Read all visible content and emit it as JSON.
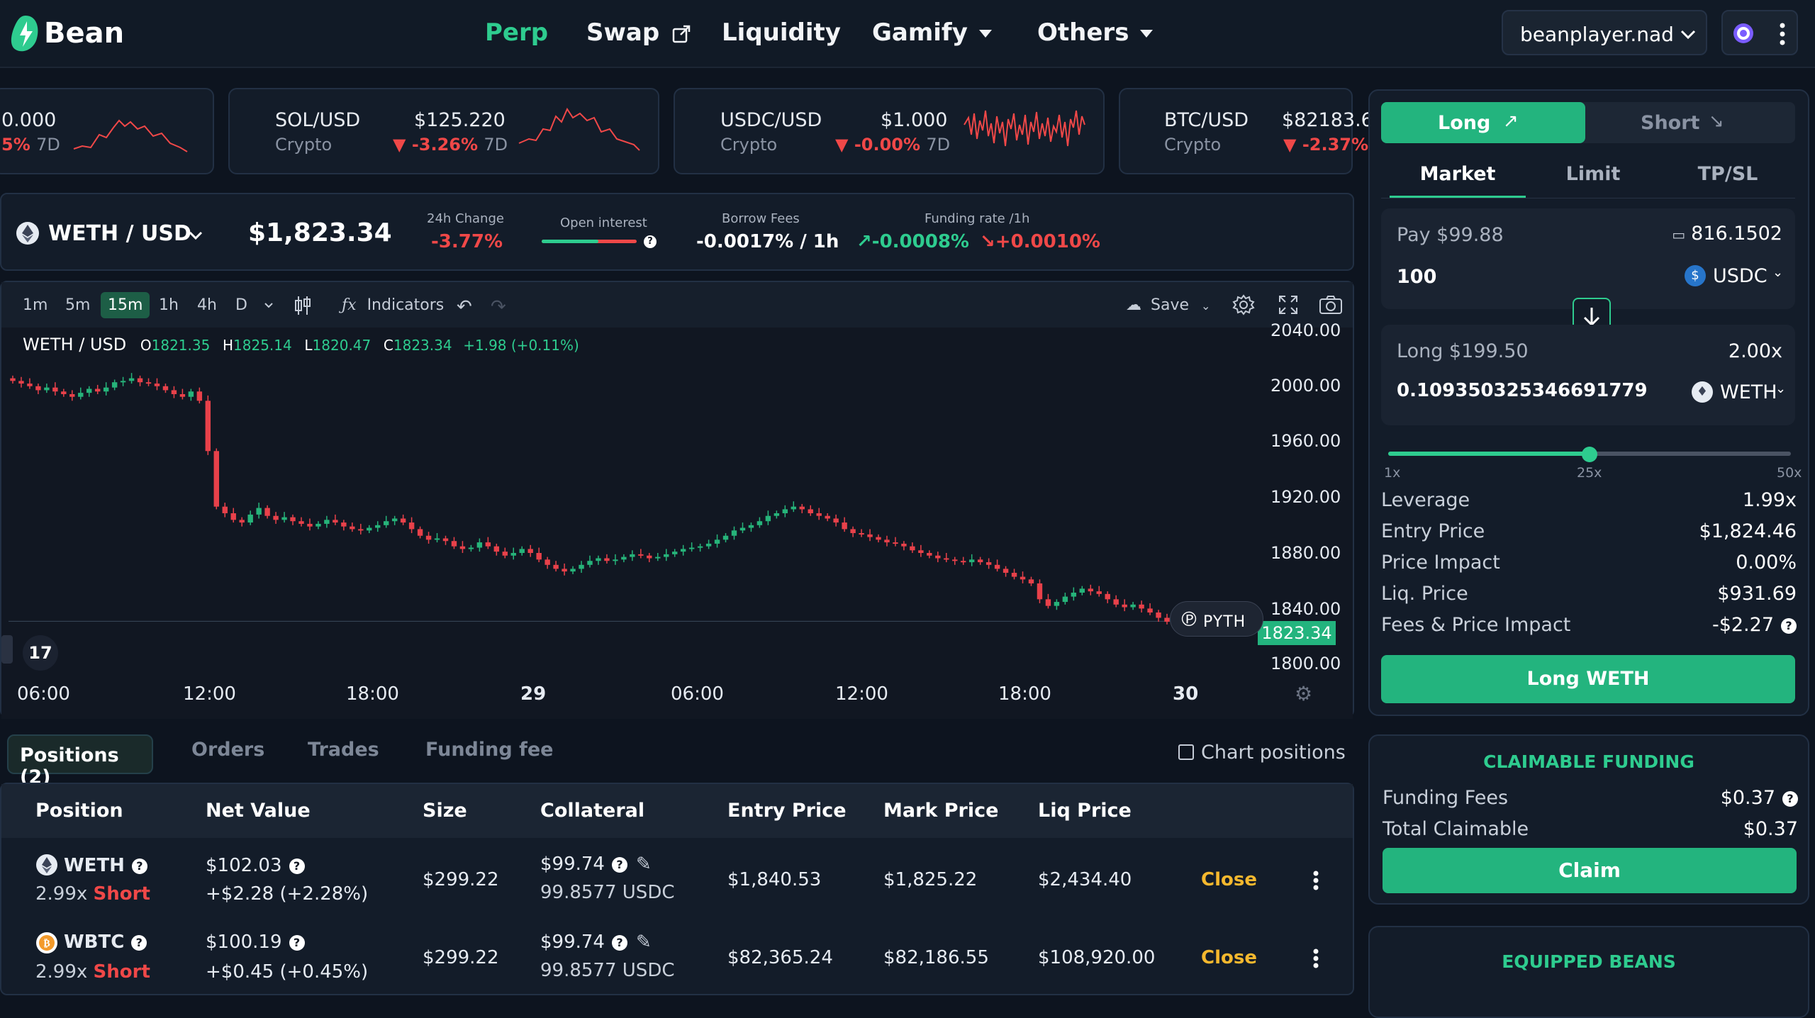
{
  "app": {
    "brand": "Bean",
    "nav": {
      "perp": "Perp",
      "swap": "Swap",
      "liquidity": "Liquidity",
      "gamify": "Gamify",
      "others": "Others"
    },
    "account": "beanplayer.nad",
    "colors": {
      "accent": "#2ecc8f",
      "down": "#f04848",
      "close": "#f5b82e",
      "bg": "#0d141f"
    }
  },
  "tickers": [
    {
      "pair": "",
      "category": "",
      "price": "0.000",
      "change": "5%",
      "period": "7D"
    },
    {
      "pair": "SOL/USD",
      "category": "Crypto",
      "price": "$125.220",
      "change": "-3.26%",
      "period": "7D"
    },
    {
      "pair": "USDC/USD",
      "category": "Crypto",
      "price": "$1.000",
      "change": "-0.00%",
      "period": "7D"
    },
    {
      "pair": "BTC/USD",
      "category": "Crypto",
      "price": "$82183.6",
      "change": "-2.37%",
      "period": ""
    }
  ],
  "market": {
    "pair": "WETH / USD",
    "price": "$1,823.34",
    "change_label": "24h Change",
    "change": "-3.77%",
    "oi_label": "Open interest",
    "oi_long_fraction": 0.6,
    "borrow_label": "Borrow Fees",
    "borrow": "-0.0017% / 1h",
    "funding_label": "Funding rate /1h",
    "funding_long": "-0.0008%",
    "funding_short": "+0.0010%"
  },
  "chart_toolbar": {
    "timeframes": [
      "1m",
      "5m",
      "15m",
      "1h",
      "4h",
      "D"
    ],
    "active": "15m",
    "indicators": "Indicators",
    "save": "Save"
  },
  "chart_data": {
    "type": "candlestick",
    "title": "WETH / USD",
    "ohlc_legend": {
      "o": "1821.35",
      "h": "1825.14",
      "l": "1820.47",
      "c": "1823.34",
      "change": "+1.98 (+0.11%)"
    },
    "y_ticks": [
      "2040.00",
      "2000.00",
      "1960.00",
      "1920.00",
      "1880.00",
      "1840.00",
      "1800.00"
    ],
    "ylim": [
      1800,
      2040
    ],
    "x_ticks": [
      "06:00",
      "12:00",
      "18:00",
      "29",
      "06:00",
      "12:00",
      "18:00",
      "30"
    ],
    "last_price": "1823.34",
    "close_series": [
      2005,
      2003,
      2001,
      1998,
      2000,
      1997,
      1995,
      1993,
      1996,
      1999,
      1997,
      2000,
      2004,
      2005,
      2007,
      2004,
      2003,
      2001,
      1998,
      1995,
      1993,
      1997,
      1990,
      1952,
      1910,
      1905,
      1900,
      1898,
      1904,
      1909,
      1903,
      1900,
      1902,
      1899,
      1897,
      1895,
      1897,
      1900,
      1898,
      1895,
      1893,
      1892,
      1894,
      1896,
      1899,
      1901,
      1898,
      1893,
      1888,
      1885,
      1886,
      1884,
      1880,
      1878,
      1879,
      1883,
      1880,
      1876,
      1873,
      1875,
      1878,
      1875,
      1870,
      1866,
      1863,
      1861,
      1863,
      1866,
      1869,
      1871,
      1869,
      1870,
      1872,
      1874,
      1873,
      1871,
      1872,
      1874,
      1876,
      1878,
      1879,
      1880,
      1882,
      1885,
      1888,
      1892,
      1894,
      1896,
      1899,
      1903,
      1905,
      1908,
      1910,
      1908,
      1905,
      1903,
      1901,
      1898,
      1893,
      1890,
      1889,
      1887,
      1885,
      1883,
      1882,
      1880,
      1877,
      1875,
      1873,
      1871,
      1870,
      1869,
      1868,
      1870,
      1868,
      1866,
      1863,
      1860,
      1857,
      1855,
      1852,
      1840,
      1835,
      1838,
      1842,
      1845,
      1848,
      1846,
      1844,
      1840,
      1836,
      1834,
      1836,
      1833,
      1830,
      1826,
      1823
    ]
  },
  "bottom_tabs": {
    "positions": "Positions (2)",
    "orders": "Orders",
    "trades": "Trades",
    "funding": "Funding fee",
    "chart_positions": "Chart positions"
  },
  "table": {
    "headers": [
      "Position",
      "Net Value",
      "Size",
      "Collateral",
      "Entry Price",
      "Mark Price",
      "Liq Price"
    ],
    "rows": [
      {
        "asset": "WETH",
        "leverage": "2.99x",
        "side": "Short",
        "net": "$102.03",
        "pnl": "+$2.28 (+2.28%)",
        "size": "$299.22",
        "collateral": "$99.74",
        "collateral_sub": "99.8577 USDC",
        "entry": "$1,840.53",
        "mark": "$1,825.22",
        "liq": "$2,434.40",
        "action": "Close"
      },
      {
        "asset": "WBTC",
        "leverage": "2.99x",
        "side": "Short",
        "net": "$100.19",
        "pnl": "+$0.45 (+0.45%)",
        "size": "$299.22",
        "collateral": "$99.74",
        "collateral_sub": "99.8577 USDC",
        "entry": "$82,365.24",
        "mark": "$82,186.55",
        "liq": "$108,920.00",
        "action": "Close"
      }
    ]
  },
  "trade": {
    "long": "Long",
    "short": "Short",
    "order_tabs": [
      "Market",
      "Limit",
      "TP/SL"
    ],
    "pay_label": "Pay $99.88",
    "balance": "816.1502",
    "pay_amount": "100",
    "pay_token": "USDC",
    "receive_label": "Long $199.50",
    "receive_leverage": "2.00x",
    "receive_amount": "0.109350325346691779",
    "receive_token": "WETH",
    "slider_min": "1x",
    "slider_mid": "25x",
    "slider_max": "50x",
    "slider_fraction": 0.5,
    "stats": [
      {
        "label": "Leverage",
        "value": "1.99x"
      },
      {
        "label": "Entry Price",
        "value": "$1,824.46"
      },
      {
        "label": "Price Impact",
        "value": "0.00%"
      },
      {
        "label": "Liq. Price",
        "value": "$931.69"
      },
      {
        "label": "Fees & Price Impact",
        "value": "-$2.27"
      }
    ],
    "submit": "Long WETH"
  },
  "funding": {
    "title": "CLAIMABLE FUNDING",
    "fees_label": "Funding Fees",
    "fees": "$0.37",
    "total_label": "Total Claimable",
    "total": "$0.37",
    "claim": "Claim"
  },
  "beans": {
    "title": "EQUIPPED BEANS"
  }
}
